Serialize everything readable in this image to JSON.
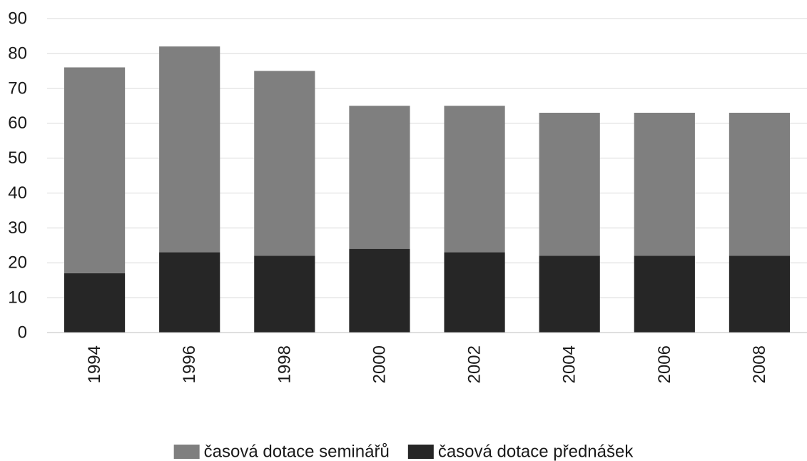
{
  "chart_data": {
    "type": "bar",
    "stacked": true,
    "categories": [
      "1994",
      "1996",
      "1998",
      "2000",
      "2002",
      "2004",
      "2006",
      "2008"
    ],
    "series": [
      {
        "name": "časová dotace přednášek",
        "color": "#262626",
        "values": [
          17,
          23,
          22,
          24,
          23,
          22,
          22,
          22
        ]
      },
      {
        "name": "časová dotace seminářů",
        "color": "#7f7f7f",
        "values": [
          59,
          59,
          53,
          41,
          42,
          41,
          41,
          41
        ]
      }
    ],
    "legend_order": [
      1,
      0
    ],
    "ylim": [
      0,
      90
    ],
    "yticks": [
      "0",
      "10",
      "20",
      "30",
      "40",
      "50",
      "60",
      "70",
      "80",
      "90"
    ],
    "grid": true,
    "legend_position": "bottom-center",
    "x_tick_rotation": "vertical"
  }
}
